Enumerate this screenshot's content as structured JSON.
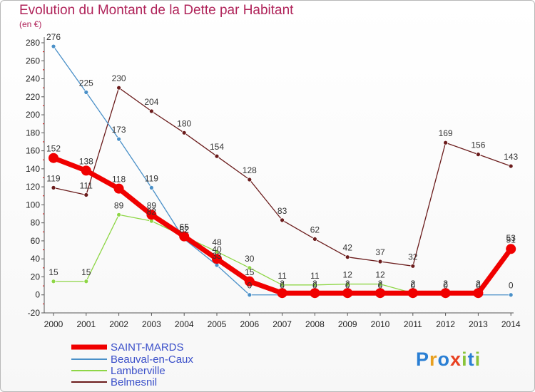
{
  "header": {
    "title": "Evolution du Montant de la Dette par Habitant",
    "subtitle": "(en €)"
  },
  "logo": {
    "text": "Proxiti"
  },
  "colors": {
    "SAINT-MARDS": "#f00000",
    "Beauval-en-Caux": "#4a90c8",
    "Lamberville": "#8ed646",
    "Belmesnil": "#6b1c1c",
    "title": "#b0245a",
    "legend_text": "#3a4fc9"
  },
  "chart_data": {
    "type": "line",
    "title": "Evolution du Montant de la Dette par Habitant",
    "ylabel": "(en €)",
    "xlabel": "",
    "ylim": [
      -20,
      280
    ],
    "y_ticks": [
      -20,
      0,
      20,
      40,
      60,
      80,
      100,
      120,
      140,
      160,
      180,
      200,
      220,
      240,
      260,
      280
    ],
    "grid": false,
    "legend_position": "bottom-left",
    "categories": [
      "2000",
      "2001",
      "2002",
      "2003",
      "2004",
      "2005",
      "2006",
      "2007",
      "2008",
      "2009",
      "2010",
      "2011",
      "2012",
      "2013",
      "2014"
    ],
    "series": [
      {
        "name": "SAINT-MARDS",
        "values": [
          152,
          138,
          118,
          89,
          65,
          40,
          15,
          2,
          2,
          2,
          2,
          2,
          2,
          2,
          51
        ]
      },
      {
        "name": "Beauval-en-Caux",
        "values": [
          276,
          225,
          173,
          119,
          62,
          33,
          0,
          0,
          0,
          0,
          0,
          0,
          0,
          0,
          0
        ]
      },
      {
        "name": "Lamberville",
        "values": [
          15,
          15,
          89,
          82,
          65,
          48,
          30,
          11,
          11,
          12,
          12,
          2,
          2,
          2,
          53
        ]
      },
      {
        "name": "Belmesnil",
        "values": [
          119,
          111,
          230,
          204,
          180,
          154,
          128,
          83,
          62,
          42,
          37,
          32,
          169,
          156,
          143
        ]
      }
    ]
  }
}
